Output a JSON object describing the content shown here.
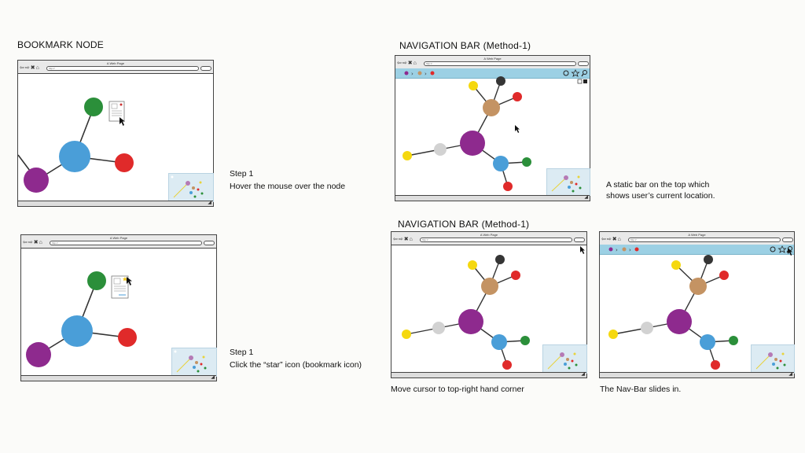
{
  "colors": {
    "blue": "#4a9ed8",
    "purple": "#8e2a8e",
    "green": "#2b8f3a",
    "red": "#e02a2a",
    "tan": "#c49363",
    "grey": "#d2d2d2",
    "yellow": "#f5d80f",
    "black": "#353535",
    "navbar": "#9cd0e4",
    "minimap": "#dcebf3"
  },
  "browser": {
    "title": "A Web Page",
    "url": "http://",
    "nav_icons": [
      "back-arrow-icon",
      "forward-arrow-icon",
      "stop-icon",
      "home-icon"
    ]
  },
  "navbar_icons": [
    "history-icon",
    "star-icon",
    "search-icon"
  ],
  "sections": {
    "bookmark_title": "BOOKMARK NODE",
    "nav1_title": "NAVIGATION BAR (Method-1)",
    "nav2_title": "NAVIGATION BAR (Method-1)"
  },
  "captions": {
    "step1_a_line1": "Step 1",
    "step1_a_line2": "Hover the mouse over the node",
    "step1_b_line1": "Step 1",
    "step1_b_line2": "Click the “star” icon (bookmark icon)",
    "static_bar_line1": "A static bar on the top which",
    "static_bar_line2": "shows user’s current location.",
    "move_cursor": "Move cursor to top-right hand corner",
    "nav_slides": "The Nav-Bar slides in."
  }
}
